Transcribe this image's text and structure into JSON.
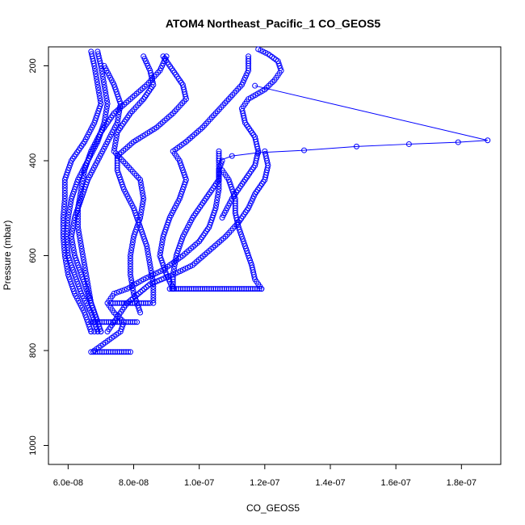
{
  "chart_data": {
    "type": "scatter",
    "title": "ATOM4 Northeast_Pacific_1 CO_GEOS5",
    "xlabel": "CO_GEOS5",
    "ylabel": "Pressure (mbar)",
    "xlim": [
      5.4e-08,
      1.92e-07
    ],
    "ylim": [
      1040,
      160
    ],
    "y_inverted": true,
    "x_ticks": [
      6e-08,
      8e-08,
      1e-07,
      1.2e-07,
      1.4e-07,
      1.6e-07,
      1.8e-07
    ],
    "x_tick_labels": [
      "6.0e-08",
      "8.0e-08",
      "1.0e-07",
      "1.2e-07",
      "1.4e-07",
      "1.6e-07",
      "1.8e-07"
    ],
    "y_ticks": [
      200,
      400,
      600,
      800,
      1000
    ],
    "y_tick_labels": [
      "200",
      "400",
      "600",
      "800",
      "1000"
    ],
    "marker": "open-circle",
    "color": "#0000ff",
    "series": [
      {
        "style": "points",
        "points": [
          [
            6.7e-08,
            760
          ],
          [
            6.5e-08,
            720
          ],
          [
            6.2e-08,
            680
          ],
          [
            6e-08,
            640
          ],
          [
            5.9e-08,
            600
          ],
          [
            5.85e-08,
            560
          ],
          [
            5.85e-08,
            520
          ],
          [
            5.9e-08,
            480
          ],
          [
            5.9e-08,
            440
          ],
          [
            6.1e-08,
            400
          ],
          [
            6.5e-08,
            360
          ],
          [
            6.8e-08,
            320
          ],
          [
            7e-08,
            280
          ],
          [
            6.9e-08,
            240
          ],
          [
            6.8e-08,
            200
          ],
          [
            6.7e-08,
            170
          ]
        ]
      },
      {
        "style": "points",
        "points": [
          [
            6.9e-08,
            760
          ],
          [
            6.7e-08,
            720
          ],
          [
            6.4e-08,
            680
          ],
          [
            6.2e-08,
            640
          ],
          [
            6e-08,
            600
          ],
          [
            5.95e-08,
            560
          ],
          [
            6e-08,
            520
          ],
          [
            6.1e-08,
            480
          ],
          [
            6.3e-08,
            440
          ],
          [
            6.6e-08,
            400
          ],
          [
            6.9e-08,
            360
          ],
          [
            7.1e-08,
            320
          ],
          [
            7.2e-08,
            280
          ],
          [
            7.1e-08,
            240
          ],
          [
            7e-08,
            200
          ],
          [
            6.9e-08,
            170
          ]
        ]
      },
      {
        "style": "points",
        "points": [
          [
            7e-08,
            760
          ],
          [
            6.8e-08,
            720
          ],
          [
            6.6e-08,
            680
          ],
          [
            6.4e-08,
            640
          ],
          [
            6.2e-08,
            600
          ],
          [
            6.1e-08,
            560
          ],
          [
            6.2e-08,
            520
          ],
          [
            6.4e-08,
            480
          ],
          [
            6.6e-08,
            440
          ],
          [
            6.9e-08,
            400
          ],
          [
            7.2e-08,
            360
          ],
          [
            7.5e-08,
            320
          ],
          [
            7.6e-08,
            280
          ],
          [
            7.4e-08,
            240
          ],
          [
            7.1e-08,
            200
          ]
        ]
      },
      {
        "style": "points",
        "points": [
          [
            6.9e-08,
            740
          ],
          [
            6.7e-08,
            700
          ],
          [
            6.6e-08,
            660
          ],
          [
            6.5e-08,
            620
          ],
          [
            6.4e-08,
            580
          ],
          [
            6.3e-08,
            540
          ],
          [
            6.3e-08,
            500
          ],
          [
            6.4e-08,
            460
          ],
          [
            6.5e-08,
            420
          ],
          [
            6.7e-08,
            380
          ],
          [
            7e-08,
            340
          ],
          [
            7.4e-08,
            300
          ],
          [
            7.9e-08,
            270
          ],
          [
            8.4e-08,
            240
          ],
          [
            8.8e-08,
            210
          ],
          [
            9e-08,
            180
          ]
        ]
      },
      {
        "style": "points",
        "points": [
          [
            8.2e-08,
            720
          ],
          [
            8e-08,
            680
          ],
          [
            7.9e-08,
            640
          ],
          [
            7.9e-08,
            600
          ],
          [
            8e-08,
            560
          ],
          [
            8.2e-08,
            520
          ],
          [
            8.3e-08,
            480
          ],
          [
            8.2e-08,
            440
          ],
          [
            7.8e-08,
            410
          ],
          [
            7.4e-08,
            380
          ],
          [
            7.5e-08,
            340
          ],
          [
            7.9e-08,
            300
          ],
          [
            8.3e-08,
            270
          ],
          [
            8.6e-08,
            240
          ],
          [
            8.5e-08,
            210
          ],
          [
            8.3e-08,
            180
          ]
        ]
      },
      {
        "style": "points",
        "points": [
          [
            8.6e-08,
            700
          ],
          [
            8.6e-08,
            660
          ],
          [
            8.5e-08,
            620
          ],
          [
            8.4e-08,
            580
          ],
          [
            8.2e-08,
            540
          ],
          [
            8e-08,
            500
          ],
          [
            7.7e-08,
            460
          ],
          [
            7.5e-08,
            420
          ],
          [
            7.5e-08,
            390
          ],
          [
            8e-08,
            360
          ],
          [
            8.7e-08,
            330
          ],
          [
            9.2e-08,
            300
          ],
          [
            9.6e-08,
            270
          ],
          [
            9.5e-08,
            240
          ],
          [
            9.2e-08,
            210
          ],
          [
            8.9e-08,
            180
          ]
        ]
      },
      {
        "style": "points",
        "points": [
          [
            9.2e-08,
            670
          ],
          [
            9e-08,
            640
          ],
          [
            8.8e-08,
            600
          ],
          [
            8.9e-08,
            560
          ],
          [
            9.1e-08,
            520
          ],
          [
            9.4e-08,
            480
          ],
          [
            9.6e-08,
            440
          ],
          [
            9.4e-08,
            400
          ],
          [
            9.2e-08,
            380
          ],
          [
            9.6e-08,
            360
          ],
          [
            1.01e-07,
            330
          ],
          [
            1.05e-07,
            300
          ],
          [
            1.09e-07,
            270
          ],
          [
            1.13e-07,
            240
          ],
          [
            1.15e-07,
            210
          ],
          [
            1.15e-07,
            180
          ]
        ]
      },
      {
        "style": "points",
        "points": [
          [
            1.07e-07,
            520
          ],
          [
            1.1e-07,
            480
          ],
          [
            1.14e-07,
            440
          ],
          [
            1.17e-07,
            410
          ],
          [
            1.18e-07,
            380
          ],
          [
            1.17e-07,
            350
          ],
          [
            1.14e-07,
            320
          ],
          [
            1.13e-07,
            290
          ],
          [
            1.15e-07,
            270
          ],
          [
            1.2e-07,
            250
          ],
          [
            1.23e-07,
            230
          ],
          [
            1.25e-07,
            210
          ],
          [
            1.24e-07,
            190
          ],
          [
            1.21e-07,
            175
          ],
          [
            1.18e-07,
            165
          ]
        ]
      },
      {
        "style": "points",
        "points": [
          [
            7.2e-08,
            760
          ],
          [
            7.8e-08,
            700
          ],
          [
            8.5e-08,
            660
          ],
          [
            9.2e-08,
            640
          ],
          [
            9.8e-08,
            620
          ],
          [
            1.03e-07,
            590
          ],
          [
            1.08e-07,
            560
          ],
          [
            1.12e-07,
            530
          ],
          [
            1.15e-07,
            500
          ],
          [
            1.17e-07,
            470
          ],
          [
            1.2e-07,
            440
          ],
          [
            1.21e-07,
            410
          ],
          [
            1.2e-07,
            380
          ]
        ]
      },
      {
        "style": "points",
        "points": [
          [
            9.2e-08,
            670
          ],
          [
            9.2e-08,
            640
          ],
          [
            9.3e-08,
            600
          ],
          [
            9.5e-08,
            560
          ],
          [
            9.8e-08,
            520
          ],
          [
            1.02e-07,
            480
          ],
          [
            1.06e-07,
            440
          ],
          [
            1.06e-07,
            400
          ],
          [
            1.06e-07,
            380
          ]
        ]
      },
      {
        "style": "points",
        "points": [
          [
            6.8e-08,
            800
          ],
          [
            7.2e-08,
            780
          ],
          [
            7.6e-08,
            760
          ],
          [
            7.7e-08,
            740
          ],
          [
            7.4e-08,
            720
          ],
          [
            7.2e-08,
            700
          ],
          [
            7.4e-08,
            680
          ],
          [
            7.8e-08,
            670
          ],
          [
            8.3e-08,
            650
          ],
          [
            8.9e-08,
            630
          ],
          [
            9.5e-08,
            600
          ],
          [
            1e-07,
            570
          ],
          [
            1.03e-07,
            540
          ],
          [
            1.05e-07,
            500
          ],
          [
            1.06e-07,
            460
          ],
          [
            1.06e-07,
            420
          ],
          [
            1.07e-07,
            400
          ]
        ]
      },
      {
        "style": "points",
        "points": [
          [
            1.07e-07,
            420
          ],
          [
            1.09e-07,
            440
          ],
          [
            1.1e-07,
            460
          ],
          [
            1.11e-07,
            480
          ],
          [
            1.11e-07,
            510
          ],
          [
            1.12e-07,
            540
          ],
          [
            1.14e-07,
            580
          ],
          [
            1.16e-07,
            620
          ],
          [
            1.17e-07,
            650
          ],
          [
            1.19e-07,
            670
          ]
        ]
      },
      {
        "style": "points",
        "points": [
          [
            9.1e-08,
            670
          ],
          [
            9.3e-08,
            670
          ],
          [
            9.5e-08,
            670
          ],
          [
            9.7e-08,
            670
          ],
          [
            9.9e-08,
            670
          ],
          [
            1.01e-07,
            670
          ],
          [
            1.03e-07,
            670
          ],
          [
            1.05e-07,
            670
          ],
          [
            1.07e-07,
            670
          ],
          [
            1.09e-07,
            670
          ],
          [
            1.11e-07,
            670
          ],
          [
            1.13e-07,
            670
          ],
          [
            1.15e-07,
            670
          ],
          [
            1.17e-07,
            670
          ],
          [
            1.19e-07,
            670
          ]
        ]
      },
      {
        "style": "points",
        "points": [
          [
            6.7e-08,
            740
          ],
          [
            6.9e-08,
            740
          ],
          [
            7.1e-08,
            740
          ],
          [
            7.3e-08,
            740
          ],
          [
            7.5e-08,
            740
          ],
          [
            7.7e-08,
            740
          ],
          [
            7.9e-08,
            740
          ],
          [
            8.1e-08,
            740
          ]
        ]
      },
      {
        "style": "points",
        "points": [
          [
            7.3e-08,
            700
          ],
          [
            7.5e-08,
            700
          ],
          [
            7.7e-08,
            700
          ],
          [
            7.9e-08,
            700
          ],
          [
            8.1e-08,
            700
          ],
          [
            8.3e-08,
            700
          ],
          [
            8.5e-08,
            700
          ]
        ]
      },
      {
        "style": "points",
        "points": [
          [
            6.7e-08,
            803
          ],
          [
            6.9e-08,
            803
          ],
          [
            7.1e-08,
            803
          ],
          [
            7.3e-08,
            803
          ],
          [
            7.5e-08,
            803
          ],
          [
            7.7e-08,
            803
          ],
          [
            7.9e-08,
            803
          ]
        ]
      },
      {
        "style": "points",
        "points": [
          [
            6.7e-08,
            760
          ],
          [
            6.8e-08,
            760
          ],
          [
            6.9e-08,
            760
          ],
          [
            7e-08,
            760
          ]
        ]
      },
      {
        "style": "line",
        "points": [
          [
            1.06e-07,
            400
          ],
          [
            1.1e-07,
            390
          ],
          [
            1.18e-07,
            383
          ],
          [
            1.32e-07,
            378
          ],
          [
            1.48e-07,
            370
          ],
          [
            1.64e-07,
            365
          ],
          [
            1.79e-07,
            361
          ],
          [
            1.88e-07,
            357
          ],
          [
            1.17e-07,
            242
          ]
        ]
      }
    ]
  }
}
